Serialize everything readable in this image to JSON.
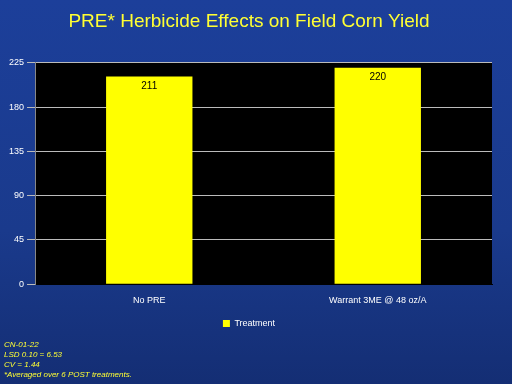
{
  "chart_data": {
    "type": "bar",
    "title": "PRE* Herbicide Effects on Field Corn Yield",
    "categories": [
      "No PRE",
      "Warrant 3ME @ 48 oz/A"
    ],
    "series": [
      {
        "name": "Treatment",
        "color": "#ffff00",
        "values": [
          211,
          220
        ]
      }
    ],
    "ylim": [
      0,
      225
    ],
    "yticks": [
      0,
      45,
      90,
      135,
      180,
      225
    ],
    "grid": true,
    "legend": "bottom",
    "data_labels": true,
    "annotations": [
      "CN-01-22",
      "LSD 0.10 = 6.53",
      "CV = 1.44",
      "*Averaged over 6 POST treatments."
    ]
  }
}
